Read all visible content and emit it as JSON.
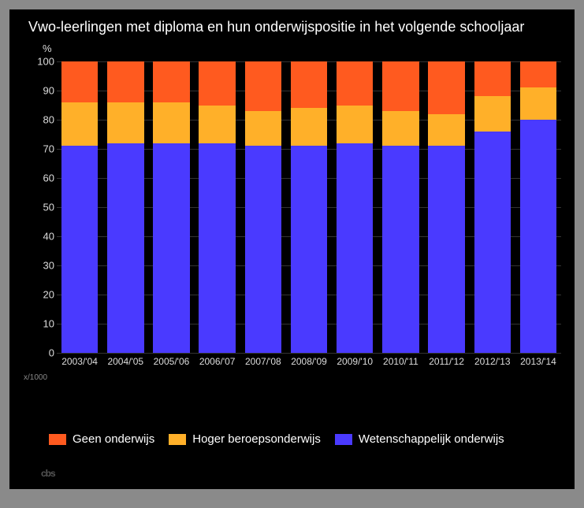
{
  "chart": {
    "type": "stacked-bar",
    "title": "Vwo-leerlingen met diploma en hun onderwijspositie in het volgende schooljaar",
    "y_unit": "%",
    "background_color": "#000000",
    "outer_background": "#8a8a8a",
    "text_color": "#ffffff",
    "grid_color": "#333333",
    "ylim": [
      0,
      100
    ],
    "ytick_step": 10,
    "y_ticks": [
      0,
      10,
      20,
      30,
      40,
      50,
      60,
      70,
      80,
      90,
      100
    ],
    "categories": [
      "2003/'04",
      "2004/'05",
      "2005/'06",
      "2006/'07",
      "2007/'08",
      "2008/'09",
      "2009/'10",
      "2010/'11",
      "2011/'12",
      "2012/'13",
      "2013/'14"
    ],
    "series": [
      {
        "name": "Wetenschappelijk onderwijs",
        "color": "#4a3aff",
        "values": [
          71,
          72,
          72,
          72,
          71,
          71,
          72,
          71,
          71,
          76,
          80
        ]
      },
      {
        "name": "Hoger beroepsonderwijs",
        "color": "#ffb029",
        "values": [
          15,
          14,
          14,
          13,
          12,
          13,
          13,
          12,
          11,
          12,
          11
        ]
      },
      {
        "name": "Geen onderwijs",
        "color": "#ff5a1f",
        "values": [
          14,
          14,
          14,
          15,
          17,
          16,
          15,
          17,
          18,
          12,
          9
        ]
      }
    ],
    "small_caption": "x/1000",
    "title_fontsize": 18,
    "axis_fontsize": 13,
    "bar_width_pct": 80,
    "logo_text": "cbs"
  },
  "legend": {
    "items": [
      {
        "label": "Geen onderwijs",
        "color": "#ff5a1f"
      },
      {
        "label": "Hoger beroepsonderwijs",
        "color": "#ffb029"
      },
      {
        "label": "Wetenschappelijk onderwijs",
        "color": "#4a3aff"
      }
    ]
  }
}
